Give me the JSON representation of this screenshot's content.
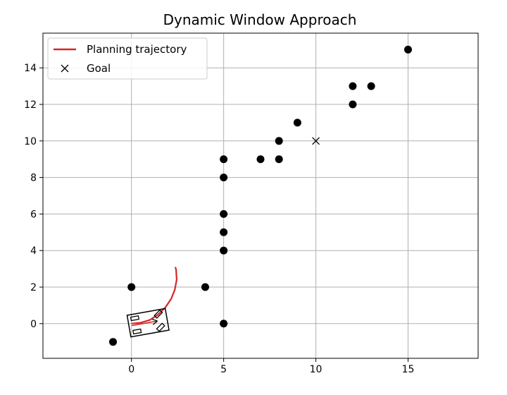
{
  "chart_data": {
    "type": "scatter",
    "title": "Dynamic Window Approach",
    "xlabel": "",
    "ylabel": "",
    "xlim": [
      -4.8,
      18.8
    ],
    "ylim": [
      -1.9,
      15.9
    ],
    "xticks": [
      0,
      5,
      10,
      15
    ],
    "yticks": [
      0,
      2,
      4,
      6,
      8,
      10,
      12,
      14
    ],
    "xtick_labels": [
      "0",
      "5",
      "10",
      "15"
    ],
    "ytick_labels": [
      "0",
      "2",
      "4",
      "6",
      "8",
      "10",
      "12",
      "14"
    ],
    "grid": true,
    "legend_position": "top-left",
    "legend": [
      {
        "label": "Planning trajectory",
        "marker": "line",
        "color": "#d62728"
      },
      {
        "label": "Goal",
        "marker": "x",
        "color": "#000000"
      }
    ],
    "obstacles": [
      {
        "x": -1,
        "y": -1
      },
      {
        "x": 0,
        "y": 2
      },
      {
        "x": 4,
        "y": 2
      },
      {
        "x": 5,
        "y": 4
      },
      {
        "x": 5,
        "y": 5
      },
      {
        "x": 5,
        "y": 6
      },
      {
        "x": 5,
        "y": 9
      },
      {
        "x": 8,
        "y": 9
      },
      {
        "x": 7,
        "y": 9
      },
      {
        "x": 8,
        "y": 10
      },
      {
        "x": 9,
        "y": 11
      },
      {
        "x": 12,
        "y": 13
      },
      {
        "x": 12,
        "y": 12
      },
      {
        "x": 15,
        "y": 15
      },
      {
        "x": 13,
        "y": 13
      },
      {
        "x": 5,
        "y": 8
      },
      {
        "x": 5,
        "y": 0
      }
    ],
    "goal": {
      "x": 10,
      "y": 10
    },
    "trajectory": [
      {
        "x": 0.0,
        "y": 0.0
      },
      {
        "x": 0.5,
        "y": 0.05
      },
      {
        "x": 1.0,
        "y": 0.2
      },
      {
        "x": 1.45,
        "y": 0.5
      },
      {
        "x": 1.85,
        "y": 0.9
      },
      {
        "x": 2.15,
        "y": 1.35
      },
      {
        "x": 2.35,
        "y": 1.85
      },
      {
        "x": 2.45,
        "y": 2.4
      },
      {
        "x": 2.42,
        "y": 2.95
      },
      {
        "x": 2.38,
        "y": 3.1
      }
    ],
    "robot": {
      "x": 0.9,
      "y": 0.05,
      "heading_deg": 10,
      "length": 2.1,
      "width": 1.2
    },
    "colors": {
      "trajectory": "#d62728",
      "obstacle": "#000000",
      "goal": "#000000",
      "grid": "#b0b0b0",
      "robot": "#000000"
    }
  }
}
